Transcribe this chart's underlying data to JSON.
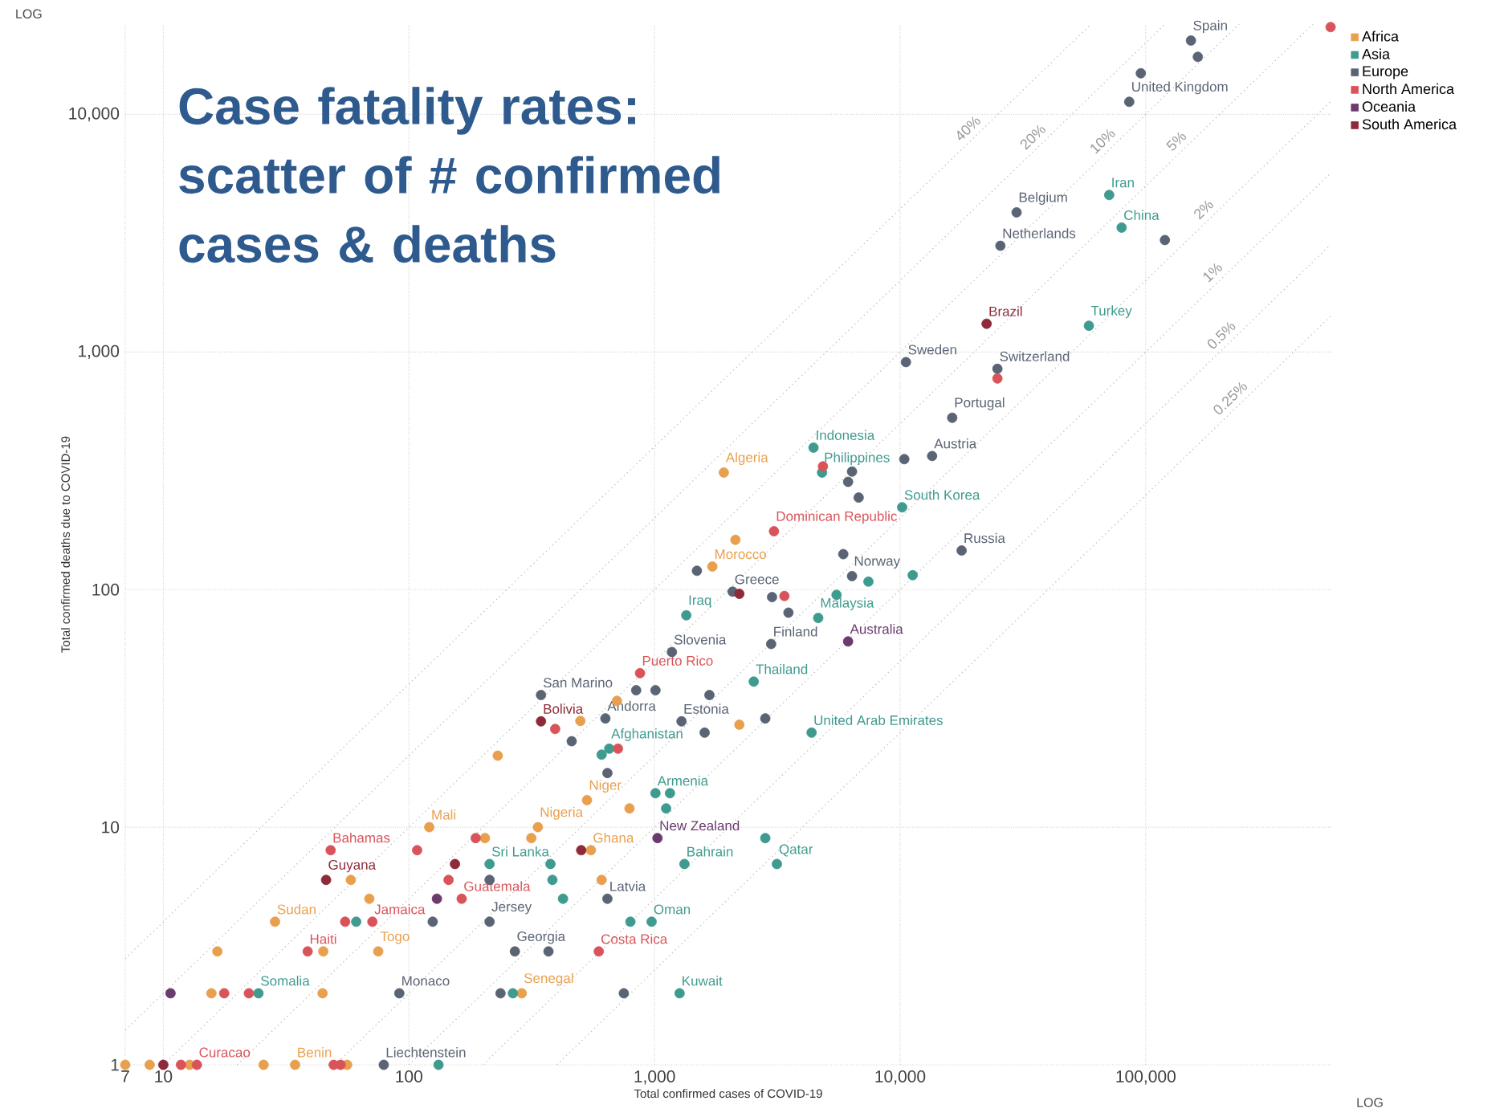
{
  "chart_data": {
    "type": "scatter",
    "title": "Case fatality rates: scatter of # confirmed cases & deaths",
    "xlabel": "Total confirmed cases of COVID-19",
    "ylabel": "Total confirmed deaths due to COVID-19",
    "log": "xy",
    "grid": true,
    "legend": "top right",
    "marker": "circle",
    "xlim": [
      7,
      570000
    ],
    "ylim": [
      1,
      24000
    ],
    "xticks": [
      7,
      10,
      100,
      {
        "value": 1000,
        "label": "1,000"
      },
      {
        "value": 10000,
        "label": "10,000"
      },
      {
        "value": 100000,
        "label": "100,000"
      }
    ],
    "yticks": [
      1,
      10,
      100,
      {
        "value": 1000,
        "label": "1,000"
      },
      {
        "value": 10000,
        "label": "10,000"
      }
    ],
    "series": [
      {
        "name": "Africa",
        "color": "#e8a04f",
        "x": [
          1915,
          2135,
          1720,
          703,
          499,
          2215,
          230,
          531,
          791,
          121,
          335,
          204,
          315,
          551,
          58,
          609,
          69,
          28.5,
          16.6,
          44.8,
          75,
          15.7,
          44.5,
          288,
          7,
          8.8,
          12.8,
          25.6,
          34.4,
          56
        ],
        "values": [
          311,
          162,
          125,
          34,
          28,
          27,
          20,
          13,
          12,
          10,
          10,
          9,
          9,
          8,
          6,
          6,
          5,
          4,
          3,
          3,
          3,
          2,
          2,
          2,
          1,
          1,
          1,
          1,
          1,
          1
        ]
      },
      {
        "name": "Asia",
        "color": "#3f9b8f",
        "x": [
          71000,
          79800,
          58700,
          4440,
          4810,
          10190,
          7430,
          11250,
          5510,
          4640,
          1347,
          2535,
          4360,
          654,
          609,
          1009,
          1156,
          1115,
          2825,
          213,
          377,
          1324,
          3150,
          384,
          424,
          61,
          973,
          798,
          24.4,
          265,
          1265,
          132
        ],
        "values": [
          4580,
          3340,
          1290,
          396,
          311,
          222,
          108,
          115,
          95,
          76,
          78,
          41,
          25,
          21.4,
          20.2,
          13.9,
          13.9,
          12,
          9,
          7,
          7,
          7,
          7,
          6,
          5,
          4,
          4,
          4,
          2,
          2,
          2,
          1
        ]
      },
      {
        "name": "Europe",
        "color": "#5a6474",
        "x": [
          152800,
          163000,
          95500,
          85700,
          29800,
          119700,
          25600,
          10560,
          24900,
          16300,
          13500,
          10400,
          6370,
          6140,
          6780,
          17800,
          1488,
          5870,
          6370,
          2080,
          3010,
          3510,
          2985,
          1177,
          345,
          842,
          1009,
          1673,
          631,
          1288,
          2825,
          460,
          1600,
          643,
          213,
          643,
          125,
          213,
          270,
          370,
          91.4,
          236,
          750,
          79
        ],
        "values": [
          20460,
          17460,
          14900,
          11300,
          3870,
          2960,
          2800,
          907,
          850,
          529,
          365,
          354,
          314,
          284,
          244,
          146,
          120,
          141,
          114,
          98,
          93,
          80,
          59,
          54.6,
          36,
          37.7,
          37.7,
          36,
          28.7,
          27.9,
          28.7,
          23,
          25,
          16.9,
          6,
          5,
          4,
          4,
          3,
          3,
          2,
          2,
          2,
          1
        ]
      },
      {
        "name": "North America",
        "color": "#d9545a",
        "x": [
          566000,
          24900,
          4850,
          3065,
          3380,
          873,
          394,
          710,
          48,
          108,
          187,
          145,
          164,
          55,
          71,
          38.7,
          593,
          17.7,
          22.3,
          11.8,
          13.7,
          49.4,
          52.7
        ],
        "values": [
          23300,
          774,
          330,
          176,
          94,
          44.5,
          25.9,
          21.4,
          8,
          8,
          9,
          6,
          5,
          4,
          4,
          3,
          3,
          2,
          2,
          1,
          1,
          1,
          1
        ]
      },
      {
        "name": "Oceania",
        "color": "#6b3a6e",
        "x": [
          6140,
          1028,
          130,
          10.7
        ],
        "values": [
          60.5,
          9,
          5,
          2
        ]
      },
      {
        "name": "South America",
        "color": "#8e2b3a",
        "x": [
          22500,
          2215,
          345,
          503,
          154,
          46,
          10
        ],
        "values": [
          1315,
          96,
          27.9,
          8,
          7,
          6,
          1
        ]
      },
      {
        "name": "40%",
        "type": "line",
        "marker": "none",
        "line_style": "dotted",
        "color": "#c4c4c4",
        "x": [
          7,
          60000
        ],
        "values": [
          2.8,
          24000
        ]
      },
      {
        "name": "20%",
        "type": "line",
        "marker": "none",
        "line_style": "dotted",
        "color": "#c4c4c4",
        "x": [
          7,
          120000
        ],
        "values": [
          1.4,
          24000
        ]
      },
      {
        "name": "10%",
        "type": "line",
        "marker": "none",
        "line_style": "dotted",
        "color": "#c4c4c4",
        "x": [
          10,
          240000
        ],
        "values": [
          1,
          24000
        ]
      },
      {
        "name": "5%",
        "type": "line",
        "marker": "none",
        "line_style": "dotted",
        "color": "#c4c4c4",
        "x": [
          20,
          480000
        ],
        "values": [
          1,
          24000
        ]
      },
      {
        "name": "2%",
        "type": "line",
        "marker": "none",
        "line_style": "dotted",
        "color": "#c4c4c4",
        "x": [
          50,
          566000
        ],
        "values": [
          1,
          11320
        ]
      },
      {
        "name": "1%",
        "type": "line",
        "marker": "none",
        "line_style": "dotted",
        "color": "#c4c4c4",
        "x": [
          100,
          566000
        ],
        "values": [
          1,
          5660
        ]
      },
      {
        "name": "0.5%",
        "type": "line",
        "marker": "none",
        "line_style": "dotted",
        "color": "#c4c4c4",
        "x": [
          200,
          566000
        ],
        "values": [
          1,
          2830
        ]
      },
      {
        "name": "0.25%",
        "type": "line",
        "marker": "none",
        "line_style": "dotted",
        "color": "#c4c4c4",
        "x": [
          400,
          566000
        ],
        "values": [
          1,
          1415
        ]
      }
    ],
    "annotations": [
      "LOG",
      "LOG",
      {
        "text": "Spain",
        "x": 152800,
        "y": 20460
      },
      {
        "text": "United Kingdom",
        "x": 85700,
        "y": 11300
      },
      {
        "text": "Iran",
        "x": 71000,
        "y": 4580
      },
      {
        "text": "Belgium",
        "x": 29800,
        "y": 3870
      },
      {
        "text": "China",
        "x": 79800,
        "y": 3340
      },
      {
        "text": "Netherlands",
        "x": 25600,
        "y": 2800
      },
      {
        "text": "Brazil",
        "x": 22500,
        "y": 1315
      },
      {
        "text": "Turkey",
        "x": 58700,
        "y": 1290
      },
      {
        "text": "Sweden",
        "x": 10560,
        "y": 907
      },
      {
        "text": "Switzerland",
        "x": 24900,
        "y": 850
      },
      {
        "text": "Portugal",
        "x": 16300,
        "y": 529
      },
      {
        "text": "Austria",
        "x": 13500,
        "y": 365
      },
      {
        "text": "Indonesia",
        "x": 4440,
        "y": 396
      },
      {
        "text": "Philippines",
        "x": 4810,
        "y": 311
      },
      {
        "text": "Algeria",
        "x": 1915,
        "y": 311
      },
      {
        "text": "South Korea",
        "x": 10190,
        "y": 222
      },
      {
        "text": "Dominican Republic",
        "x": 3065,
        "y": 176
      },
      {
        "text": "Russia",
        "x": 17800,
        "y": 146
      },
      {
        "text": "Morocco",
        "x": 1720,
        "y": 125
      },
      {
        "text": "Norway",
        "x": 6370,
        "y": 114
      },
      {
        "text": "Greece",
        "x": 2080,
        "y": 98
      },
      {
        "text": "Iraq",
        "x": 1347,
        "y": 78
      },
      {
        "text": "Malaysia",
        "x": 4640,
        "y": 76
      },
      {
        "text": "Finland",
        "x": 2985,
        "y": 59
      },
      {
        "text": "Australia",
        "x": 6140,
        "y": 60.5
      },
      {
        "text": "Slovenia",
        "x": 1177,
        "y": 54.6
      },
      {
        "text": "Puerto Rico",
        "x": 873,
        "y": 44.5
      },
      {
        "text": "Thailand",
        "x": 2535,
        "y": 41
      },
      {
        "text": "San Marino",
        "x": 345,
        "y": 36
      },
      {
        "text": "Bolivia",
        "x": 345,
        "y": 27.9
      },
      {
        "text": "Andorra",
        "x": 631,
        "y": 28.7
      },
      {
        "text": "Estonia",
        "x": 1288,
        "y": 27.9
      },
      {
        "text": "United Arab Emirates",
        "x": 4360,
        "y": 25
      },
      {
        "text": "Afghanistan",
        "x": 654,
        "y": 21.4
      },
      {
        "text": "Armenia",
        "x": 1009,
        "y": 13.9
      },
      {
        "text": "Niger",
        "x": 531,
        "y": 13
      },
      {
        "text": "Mali",
        "x": 121,
        "y": 10
      },
      {
        "text": "Nigeria",
        "x": 335,
        "y": 10
      },
      {
        "text": "New Zealand",
        "x": 1028,
        "y": 9
      },
      {
        "text": "Bahamas",
        "x": 48,
        "y": 8
      },
      {
        "text": "Ghana",
        "x": 551,
        "y": 8
      },
      {
        "text": "Sri Lanka",
        "x": 213,
        "y": 7
      },
      {
        "text": "Bahrain",
        "x": 1324,
        "y": 7
      },
      {
        "text": "Qatar",
        "x": 3150,
        "y": 7
      },
      {
        "text": "Guyana",
        "x": 46,
        "y": 6
      },
      {
        "text": "Guatemala",
        "x": 164,
        "y": 5
      },
      {
        "text": "Latvia",
        "x": 643,
        "y": 5
      },
      {
        "text": "Sudan",
        "x": 28.5,
        "y": 4
      },
      {
        "text": "Jamaica",
        "x": 71,
        "y": 4
      },
      {
        "text": "Jersey",
        "x": 213,
        "y": 4
      },
      {
        "text": "Oman",
        "x": 973,
        "y": 4
      },
      {
        "text": "Haiti",
        "x": 38.7,
        "y": 3
      },
      {
        "text": "Togo",
        "x": 75,
        "y": 3
      },
      {
        "text": "Georgia",
        "x": 270,
        "y": 3
      },
      {
        "text": "Costa Rica",
        "x": 593,
        "y": 3
      },
      {
        "text": "Somalia",
        "x": 24.4,
        "y": 2
      },
      {
        "text": "Monaco",
        "x": 91.4,
        "y": 2
      },
      {
        "text": "Senegal",
        "x": 288,
        "y": 2
      },
      {
        "text": "Kuwait",
        "x": 1265,
        "y": 2
      },
      {
        "text": "Curacao",
        "x": 13.7,
        "y": 1
      },
      {
        "text": "Benin",
        "x": 34.4,
        "y": 1
      },
      {
        "text": "Liechtenstein",
        "x": 79,
        "y": 1
      }
    ]
  }
}
